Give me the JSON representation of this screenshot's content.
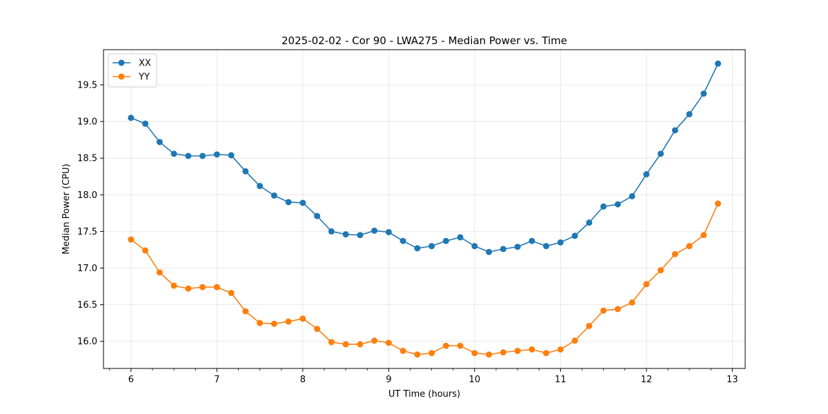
{
  "chart_data": {
    "type": "line",
    "title": "2025-02-02 - Cor 90 - LWA275 - Median Power vs. Time",
    "xlabel": "UT Time (hours)",
    "ylabel": "Median Power (CPU)",
    "xlim": [
      5.68,
      13.15
    ],
    "ylim": [
      15.63,
      19.98
    ],
    "x_ticks": [
      6,
      7,
      8,
      9,
      10,
      11,
      12,
      13
    ],
    "x_tick_labels": [
      "6",
      "7",
      "8",
      "9",
      "10",
      "11",
      "12",
      "13"
    ],
    "y_ticks": [
      16.0,
      16.5,
      17.0,
      17.5,
      18.0,
      18.5,
      19.0,
      19.5
    ],
    "y_tick_labels": [
      "16.0",
      "16.5",
      "17.0",
      "17.5",
      "18.0",
      "18.5",
      "19.0",
      "19.5"
    ],
    "grid": true,
    "legend_position": "top-left",
    "x": [
      6.0,
      6.1667,
      6.3333,
      6.5,
      6.6667,
      6.8333,
      7.0,
      7.1667,
      7.3333,
      7.5,
      7.6667,
      7.8333,
      8.0,
      8.1667,
      8.3333,
      8.5,
      8.6667,
      8.8333,
      9.0,
      9.1667,
      9.3333,
      9.5,
      9.6667,
      9.8333,
      10.0,
      10.1667,
      10.3333,
      10.5,
      10.6667,
      10.8333,
      11.0,
      11.1667,
      11.3333,
      11.5,
      11.6667,
      11.8333,
      12.0,
      12.1667,
      12.3333,
      12.5,
      12.6667,
      12.8333
    ],
    "series": [
      {
        "name": "XX",
        "color": "#1f77b4",
        "values": [
          19.05,
          18.97,
          18.72,
          18.56,
          18.53,
          18.53,
          18.55,
          18.54,
          18.32,
          18.12,
          17.99,
          17.9,
          17.89,
          17.71,
          17.5,
          17.46,
          17.45,
          17.51,
          17.49,
          17.37,
          17.27,
          17.3,
          17.37,
          17.42,
          17.3,
          17.22,
          17.26,
          17.29,
          17.37,
          17.3,
          17.35,
          17.44,
          17.62,
          17.84,
          17.87,
          17.98,
          18.28,
          18.56,
          18.88,
          19.1,
          19.38,
          19.79
        ]
      },
      {
        "name": "YY",
        "color": "#ff7f0e",
        "values": [
          17.39,
          17.24,
          16.94,
          16.76,
          16.72,
          16.74,
          16.74,
          16.66,
          16.41,
          16.25,
          16.24,
          16.27,
          16.31,
          16.17,
          15.99,
          15.96,
          15.96,
          16.01,
          15.98,
          15.87,
          15.82,
          15.84,
          15.94,
          15.94,
          15.84,
          15.82,
          15.85,
          15.87,
          15.89,
          15.84,
          15.89,
          16.01,
          16.21,
          16.42,
          16.44,
          16.53,
          16.78,
          16.97,
          17.19,
          17.3,
          17.45,
          17.88
        ]
      }
    ]
  }
}
